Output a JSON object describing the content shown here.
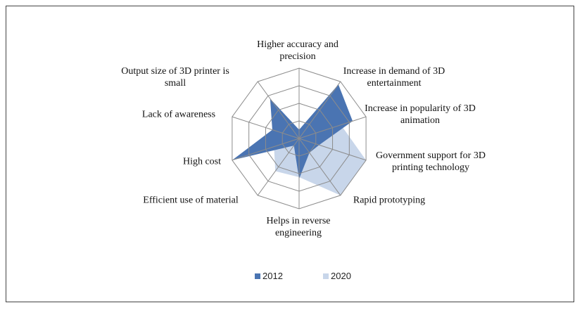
{
  "chart_data": {
    "type": "radar",
    "categories": [
      "Higher accuracy and precision",
      "Increase in demand of 3D entertainment",
      "Increase in popularity of 3D animation",
      "Government support for 3D printing technology",
      "Rapid prototyping",
      "Helps in reverse engineering",
      "Efficient use of material",
      "High cost",
      "Lack of awareness",
      "Output size of 3D printer is small"
    ],
    "series": [
      {
        "name": "2012",
        "color": "#4a74b2",
        "values": [
          0.5,
          3.8,
          3.2,
          1.2,
          1.0,
          2.3,
          0.5,
          4.0,
          1.6,
          2.8
        ]
      },
      {
        "name": "2020",
        "color": "#c8d6ea",
        "values": [
          0.5,
          2.0,
          2.5,
          4.0,
          4.0,
          2.2,
          2.3,
          1.5,
          0.8,
          0.7
        ]
      }
    ],
    "rlim": [
      0,
      4
    ],
    "grid_rings": [
      1,
      2,
      3,
      4
    ],
    "legend": "bottom"
  }
}
